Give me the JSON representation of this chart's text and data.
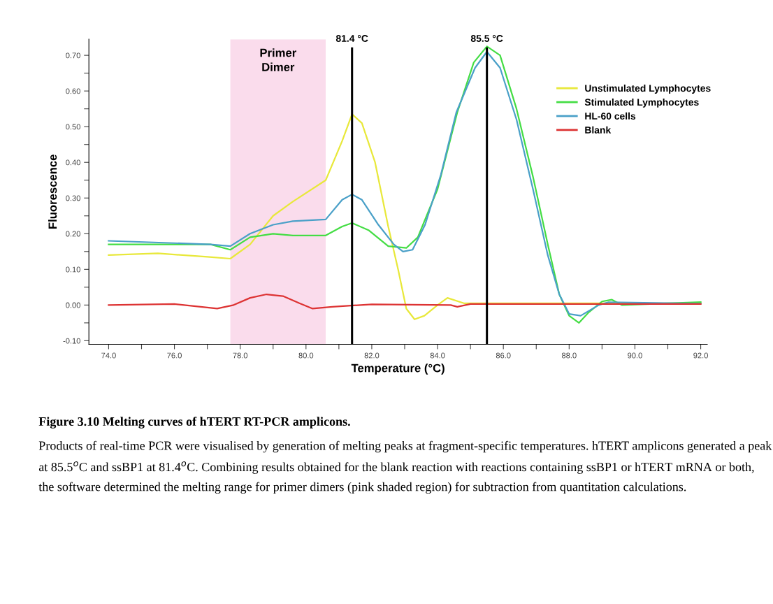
{
  "chart_data": {
    "type": "line",
    "title": "Figure 3.10 Melting curves of hTERT RT-PCR amplicons.",
    "xlabel": "Temperature (°C)",
    "ylabel": "Fluorescence",
    "xlim": [
      73.4,
      92.2
    ],
    "ylim": [
      -0.11,
      0.745
    ],
    "xticks": [
      {
        "value": 74,
        "label": "74.0"
      },
      {
        "value": 75,
        "label": null
      },
      {
        "value": 76,
        "label": "76.0"
      },
      {
        "value": 77,
        "label": null
      },
      {
        "value": 78,
        "label": "78.0"
      },
      {
        "value": 79,
        "label": null
      },
      {
        "value": 80,
        "label": "80.0"
      },
      {
        "value": 81,
        "label": null
      },
      {
        "value": 82,
        "label": "82.0"
      },
      {
        "value": 83,
        "label": null
      },
      {
        "value": 84,
        "label": "84.0"
      },
      {
        "value": 85,
        "label": null
      },
      {
        "value": 86,
        "label": "86.0"
      },
      {
        "value": 87,
        "label": null
      },
      {
        "value": 88,
        "label": "88.0"
      },
      {
        "value": 89,
        "label": null
      },
      {
        "value": 90,
        "label": "90.0"
      },
      {
        "value": 91,
        "label": null
      },
      {
        "value": 92,
        "label": "92.0"
      }
    ],
    "yticks": [
      {
        "value": -0.1,
        "label": "-0.10"
      },
      {
        "value": -0.05,
        "label": null
      },
      {
        "value": 0,
        "label": "0.00"
      },
      {
        "value": 0.05,
        "label": null
      },
      {
        "value": 0.1,
        "label": "0.10"
      },
      {
        "value": 0.15,
        "label": null
      },
      {
        "value": 0.2,
        "label": "0.20"
      },
      {
        "value": 0.25,
        "label": null
      },
      {
        "value": 0.3,
        "label": "0.30"
      },
      {
        "value": 0.35,
        "label": null
      },
      {
        "value": 0.4,
        "label": "0.40"
      },
      {
        "value": 0.45,
        "label": null
      },
      {
        "value": 0.5,
        "label": "0.50"
      },
      {
        "value": 0.55,
        "label": null
      },
      {
        "value": 0.6,
        "label": "0.60"
      },
      {
        "value": 0.65,
        "label": null
      },
      {
        "value": 0.7,
        "label": "0.70"
      }
    ],
    "grid": false,
    "legend": "top right",
    "series": [
      {
        "name": "Unstimulated Lymphocytes",
        "color": "#e8e83a",
        "x": [
          74,
          75.5,
          77,
          77.7,
          78.3,
          79,
          79.6,
          80.6,
          81.1,
          81.4,
          81.7,
          82.1,
          82.5,
          82.8,
          83.05,
          83.3,
          83.6,
          84.0,
          84.3,
          84.8,
          85.5,
          92
        ],
        "values": [
          0.14,
          0.145,
          0.135,
          0.13,
          0.17,
          0.25,
          0.29,
          0.35,
          0.46,
          0.535,
          0.51,
          0.4,
          0.22,
          0.1,
          -0.01,
          -0.04,
          -0.03,
          0.0,
          0.02,
          0.005,
          0.005,
          0.005
        ]
      },
      {
        "name": "Stimulated Lymphocytes",
        "color": "#44dd44",
        "x": [
          74,
          77.1,
          77.7,
          78.3,
          79.0,
          79.6,
          80.6,
          81.1,
          81.4,
          81.9,
          82.5,
          83.05,
          83.4,
          84.0,
          84.6,
          85.1,
          85.5,
          85.9,
          86.4,
          86.9,
          87.35,
          87.7,
          88.0,
          88.3,
          88.6,
          89.0,
          89.3,
          89.6,
          92
        ],
        "values": [
          0.17,
          0.17,
          0.155,
          0.19,
          0.2,
          0.195,
          0.195,
          0.22,
          0.23,
          0.21,
          0.165,
          0.16,
          0.19,
          0.325,
          0.54,
          0.68,
          0.725,
          0.7,
          0.55,
          0.36,
          0.17,
          0.03,
          -0.03,
          -0.05,
          -0.02,
          0.01,
          0.015,
          0.0,
          0.008
        ]
      },
      {
        "name": "HL-60 cells",
        "color": "#4aa0c8",
        "x": [
          74,
          77.1,
          77.7,
          78.3,
          79.0,
          79.6,
          80.6,
          81.1,
          81.4,
          81.7,
          82.2,
          82.67,
          82.95,
          83.24,
          83.62,
          84.1,
          84.57,
          85.14,
          85.5,
          85.9,
          86.4,
          86.9,
          87.35,
          87.7,
          88.0,
          88.35,
          88.9,
          89.2,
          92
        ],
        "values": [
          0.18,
          0.17,
          0.165,
          0.2,
          0.225,
          0.235,
          0.24,
          0.295,
          0.31,
          0.295,
          0.225,
          0.17,
          0.15,
          0.155,
          0.225,
          0.365,
          0.54,
          0.665,
          0.71,
          0.665,
          0.52,
          0.325,
          0.14,
          0.03,
          -0.025,
          -0.03,
          0.0,
          0.008,
          0.004
        ]
      },
      {
        "name": "Blank",
        "color": "#dd3333",
        "x": [
          74,
          76,
          77.3,
          77.8,
          78.3,
          78.8,
          79.3,
          79.8,
          80.2,
          80.8,
          82,
          84.4,
          84.6,
          85,
          92
        ],
        "values": [
          0.0,
          0.003,
          -0.01,
          0.0,
          0.02,
          0.03,
          0.025,
          0.005,
          -0.01,
          -0.005,
          0.002,
          0.0,
          -0.005,
          0.003,
          0.003
        ]
      }
    ],
    "bands": [
      {
        "axis": "x",
        "from": 77.7,
        "to": 80.6,
        "label": "Primer\nDimer",
        "color": "#fadcec"
      }
    ],
    "ref_lines": [
      {
        "axis": "x",
        "value": 81.4,
        "label": "81.4 °C",
        "color": "#000000"
      },
      {
        "axis": "x",
        "value": 85.5,
        "label": "85.5 °C",
        "color": "#000000"
      }
    ],
    "annotations": [
      "Products of real-time PCR were visualised by generation of melting peaks at fragment-specific temperatures. hTERT amplicons generated a peak at 85.5$^{o}$C and ssBP1 at 81.4$^{o}$C. Combining results obtained for the blank reaction with reactions containing ssBP1 or hTERT mRNA or both, the software determined the melting range for primer dimers (pink shaded region) for subtraction from quantitation calculations."
    ]
  }
}
